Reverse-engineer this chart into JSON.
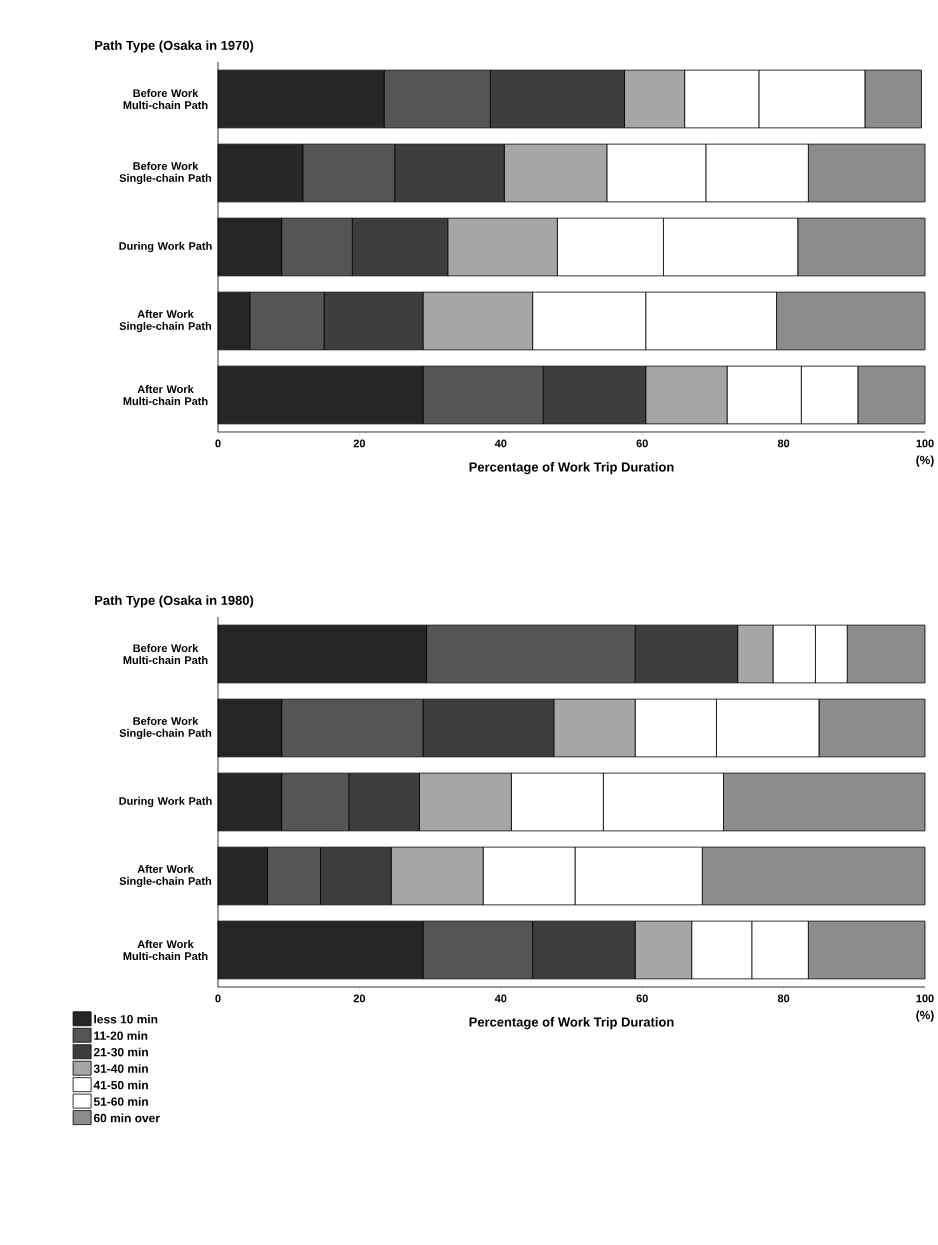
{
  "chart_data": [
    {
      "type": "bar",
      "orientation": "horizontal",
      "stacked": true,
      "title": "Path Type  (Osaka in 1970)",
      "xlabel": "Percentage of Work Trip Duration",
      "categories": [
        "Before Work Multi-chain Path",
        "Before Work Single-chain Path",
        "During Work Path",
        "After Work Single-chain Path",
        "After Work Multi-chain Path"
      ],
      "series": [
        {
          "color": "#262626",
          "values": [
            23.5,
            12,
            9,
            4.5,
            29
          ]
        },
        {
          "color": "#555555",
          "values": [
            15,
            13,
            10,
            10.5,
            17
          ]
        },
        {
          "color": "#3d3d3d",
          "values": [
            19,
            15.5,
            13.5,
            14,
            14.5
          ]
        },
        {
          "color": "#a6a6a6",
          "values": [
            8.5,
            14.5,
            15.5,
            15.5,
            11.5
          ]
        },
        {
          "color": "#ffffff",
          "values": [
            10.5,
            14,
            15,
            16,
            10.5
          ]
        },
        {
          "color": "#ffffff",
          "values": [
            15,
            14.5,
            19,
            18.5,
            8
          ]
        },
        {
          "color": "#8c8c8c",
          "values": [
            8,
            16.5,
            18,
            21,
            9.5
          ]
        }
      ],
      "xlim": [
        0,
        100
      ],
      "xticks": [
        0,
        20,
        40,
        60,
        80,
        100
      ],
      "annotations": [
        "(%)"
      ]
    },
    {
      "type": "bar",
      "orientation": "horizontal",
      "stacked": true,
      "title": "Path Type  (Osaka in 1980)",
      "xlabel": "Percentage of Work Trip Duration",
      "categories": [
        "Before Work Multi-chain Path",
        "Before Work Single-chain Path",
        "During Work Path",
        "After Work Single-chain Path",
        "After Work Multi-chain Path"
      ],
      "series": [
        {
          "name": "less 10 min",
          "color": "#262626",
          "values": [
            29.5,
            9,
            9,
            7,
            29
          ]
        },
        {
          "name": "11-20 min",
          "color": "#555555",
          "values": [
            29.5,
            20,
            9.5,
            7.5,
            15.5
          ]
        },
        {
          "name": "21-30 min",
          "color": "#3d3d3d",
          "values": [
            14.5,
            18.5,
            10,
            10,
            14.5
          ]
        },
        {
          "name": "31-40 min",
          "color": "#a6a6a6",
          "values": [
            5,
            11.5,
            13,
            13,
            8
          ]
        },
        {
          "name": "41-50 min",
          "color": "#ffffff",
          "values": [
            6,
            11.5,
            13,
            13,
            8.5
          ]
        },
        {
          "name": "51-60 min",
          "color": "#ffffff",
          "values": [
            4.5,
            14.5,
            17,
            18,
            8
          ]
        },
        {
          "name": "60 min over",
          "color": "#8c8c8c",
          "values": [
            11,
            15,
            28.5,
            31.5,
            16.5
          ]
        }
      ],
      "xlim": [
        0,
        100
      ],
      "xticks": [
        0,
        20,
        40,
        60,
        80,
        100
      ],
      "annotations": [
        "(%)"
      ],
      "legend": "bottom left"
    }
  ]
}
